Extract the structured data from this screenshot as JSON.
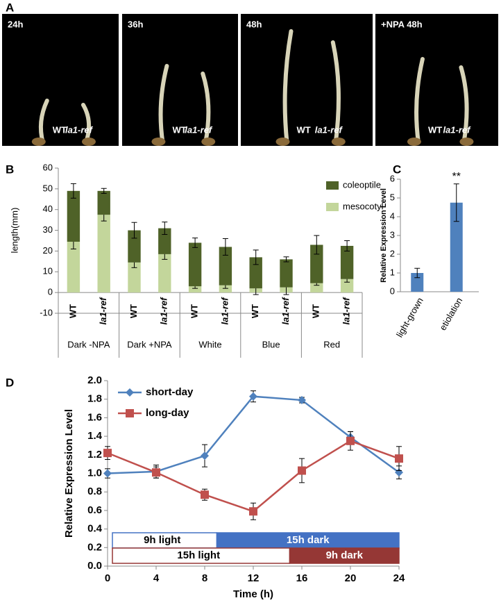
{
  "panel_labels": [
    "A",
    "B",
    "C",
    "D"
  ],
  "photos": [
    {
      "label": "24h",
      "annotations": [
        "WT",
        "la1-ref"
      ]
    },
    {
      "label": "36h",
      "annotations": [
        "WT",
        "la1-ref"
      ]
    },
    {
      "label": "48h",
      "annotations": [
        "WT",
        "la1-ref"
      ]
    },
    {
      "label": "+NPA 48h",
      "annotations": [
        "WT",
        "la1-ref"
      ]
    }
  ],
  "chart_data": [
    {
      "type": "stacked_bar",
      "y_label": "length(mm)",
      "categories": [
        "WT",
        "la1-ref",
        "WT",
        "la1-ref",
        "WT",
        "la1-ref",
        "WT",
        "la1-ref",
        "WT",
        "la1-ref"
      ],
      "group_labels": [
        "Dark -NPA",
        "Dark +NPA",
        "White",
        "Blue",
        "Red"
      ],
      "series": [
        {
          "name": "mesocotyl",
          "color": "#c3d69b",
          "values": [
            24.5,
            37.5,
            14.5,
            18.5,
            3,
            3.5,
            2,
            2.5,
            4.5,
            6.5
          ],
          "errors": [
            3.5,
            3,
            2.5,
            2.5,
            1,
            1.5,
            3,
            3.5,
            1,
            1.5
          ]
        },
        {
          "name": "coleoptile",
          "color": "#4f6228",
          "values": [
            24.5,
            11.5,
            15.5,
            12.5,
            21,
            18.5,
            15,
            13.5,
            18.5,
            16
          ],
          "errors": [
            3.5,
            1.2,
            3.8,
            3,
            2.3,
            4,
            3.5,
            1.2,
            4.5,
            2.5
          ]
        }
      ],
      "ylim": [
        -10,
        60
      ],
      "yticks": [
        -10,
        0,
        10,
        20,
        30,
        40,
        50,
        60
      ]
    },
    {
      "type": "bar",
      "y_label": "Relative Expression Level",
      "categories": [
        "light-grown",
        "etiolation"
      ],
      "values": [
        1.0,
        4.75
      ],
      "errors": [
        0.25,
        1.0
      ],
      "color": "#4f81bd",
      "annotation": "**",
      "ylim": [
        0,
        6
      ],
      "yticks": [
        0,
        1,
        2,
        3,
        4,
        5,
        6
      ]
    },
    {
      "type": "line",
      "x_label": "Time (h)",
      "y_label": "Relative Expression Level",
      "x": [
        0,
        4,
        8,
        12,
        16,
        20,
        24
      ],
      "series": [
        {
          "name": "short-day",
          "color": "#4f81bd",
          "marker": "diamond",
          "values": [
            1.0,
            1.02,
            1.19,
            1.83,
            1.79,
            1.39,
            1.01
          ],
          "errors": [
            0.05,
            0.07,
            0.12,
            0.06,
            0.03,
            0.06,
            0.07
          ]
        },
        {
          "name": "long-day",
          "color": "#c0504d",
          "marker": "square",
          "values": [
            1.22,
            1.01,
            0.77,
            0.59,
            1.03,
            1.35,
            1.16
          ],
          "errors": [
            0.07,
            0.06,
            0.06,
            0.09,
            0.13,
            0.1,
            0.13
          ]
        }
      ],
      "light_bars": [
        [
          {
            "label": "9h light",
            "start": 0,
            "end": 9,
            "color": "#ffffff",
            "text_color": "#000000"
          },
          {
            "label": "15h dark",
            "start": 9,
            "end": 24,
            "color": "#4472c4",
            "text_color": "#ffffff"
          }
        ],
        [
          {
            "label": "15h light",
            "start": 0,
            "end": 15,
            "color": "#ffffff",
            "text_color": "#000000"
          },
          {
            "label": "9h dark",
            "start": 15,
            "end": 24,
            "color": "#953735",
            "text_color": "#ffffff"
          }
        ]
      ],
      "xlim": [
        0,
        24
      ],
      "xticks": [
        0,
        4,
        8,
        12,
        16,
        20,
        24
      ],
      "ylim": [
        0,
        2
      ],
      "yticks": [
        {
          "value": 0,
          "label": "0.0"
        },
        0.2,
        0.4,
        0.6,
        0.8,
        {
          "value": 1,
          "label": "1.0"
        },
        1.2,
        1.4,
        1.6,
        1.8,
        {
          "value": 2,
          "label": "2.0"
        }
      ]
    }
  ]
}
